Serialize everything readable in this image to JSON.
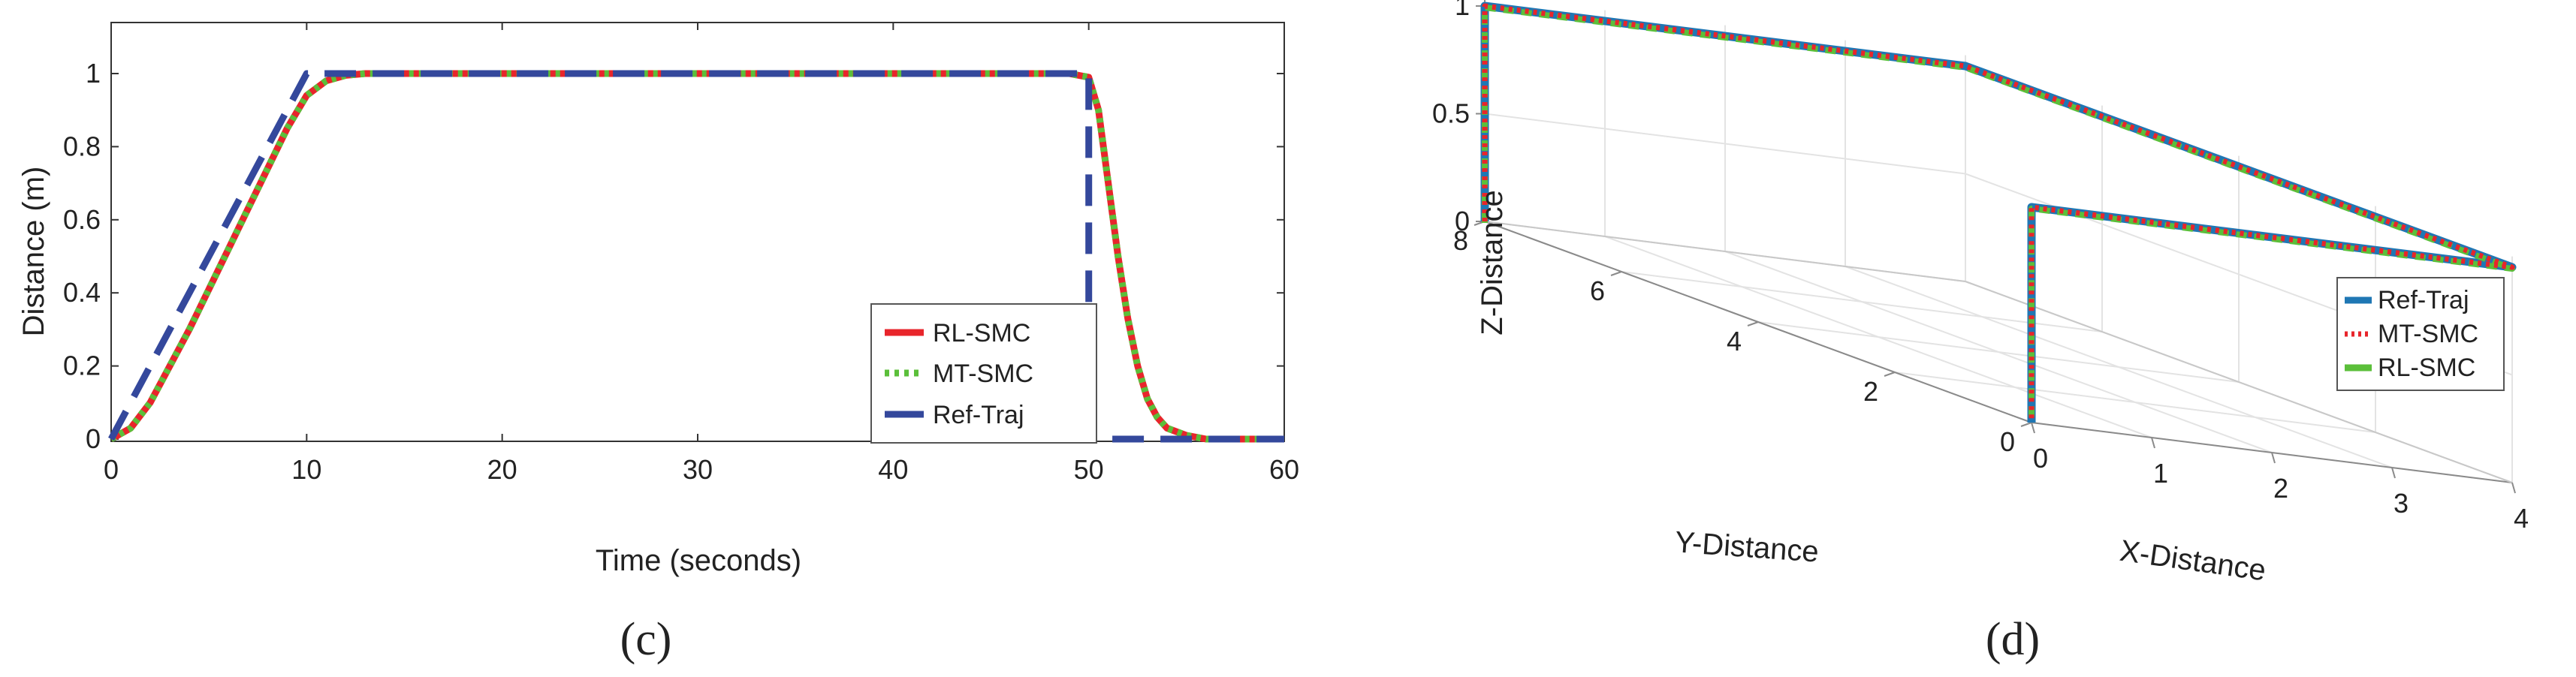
{
  "chart_data": [
    {
      "type": "line",
      "panel_label": "(c)",
      "xlabel": "Time (seconds)",
      "ylabel": "Distance (m)",
      "xlim": [
        0,
        60
      ],
      "ylim": [
        0,
        1
      ],
      "xticks": [
        "0",
        "10",
        "20",
        "30",
        "40",
        "50",
        "60"
      ],
      "yticks": [
        "0",
        "0.2",
        "0.4",
        "0.6",
        "0.8",
        "1"
      ],
      "grid": false,
      "legend_position": "lower-right",
      "colors": {
        "rl_smc": "#e8252b",
        "mt_smc": "#5bbf3a",
        "ref_traj": "#34489c"
      },
      "series": [
        {
          "name": "RL-SMC",
          "style": "solid",
          "x": [
            0,
            1,
            2,
            3,
            4,
            5,
            6,
            7,
            8,
            9,
            10,
            11,
            12,
            13,
            20,
            30,
            40,
            49,
            50,
            50.5,
            51,
            51.5,
            52,
            52.5,
            53,
            53.5,
            54,
            55,
            56,
            57,
            60
          ],
          "y": [
            0,
            0.03,
            0.1,
            0.2,
            0.3,
            0.41,
            0.52,
            0.63,
            0.74,
            0.85,
            0.94,
            0.98,
            0.995,
            1,
            1,
            1,
            1,
            1,
            0.99,
            0.9,
            0.7,
            0.5,
            0.33,
            0.2,
            0.11,
            0.06,
            0.03,
            0.01,
            0,
            0,
            0
          ]
        },
        {
          "name": "MT-SMC",
          "style": "dotted",
          "x": [
            0,
            1,
            2,
            3,
            4,
            5,
            6,
            7,
            8,
            9,
            10,
            11,
            12,
            13,
            20,
            30,
            40,
            49,
            50,
            50.5,
            51,
            51.5,
            52,
            52.5,
            53,
            53.5,
            54,
            55,
            56,
            57,
            60
          ],
          "y": [
            0,
            0.03,
            0.1,
            0.2,
            0.3,
            0.41,
            0.52,
            0.63,
            0.74,
            0.85,
            0.94,
            0.98,
            0.995,
            1,
            1,
            1,
            1,
            1,
            0.99,
            0.9,
            0.7,
            0.5,
            0.33,
            0.2,
            0.11,
            0.06,
            0.03,
            0.01,
            0,
            0,
            0
          ]
        },
        {
          "name": "Ref-Traj",
          "style": "dashed",
          "x": [
            0,
            10,
            50,
            50,
            60
          ],
          "y": [
            0,
            1,
            1,
            0,
            0
          ]
        }
      ]
    },
    {
      "type": "line3d",
      "panel_label": "(d)",
      "xlabel": "X-Distance",
      "ylabel": "Y-Distance",
      "zlabel": "Z-Distance",
      "xlim": [
        0,
        4
      ],
      "ylim": [
        0,
        8
      ],
      "zlim": [
        0,
        1
      ],
      "xticks": [
        "0",
        "1",
        "2",
        "3",
        "4"
      ],
      "yticks": [
        "0",
        "2",
        "4",
        "6",
        "8"
      ],
      "zticks": [
        "0",
        "0.5",
        "1"
      ],
      "grid": true,
      "legend_position": "right",
      "colors": {
        "ref_traj": "#1f77b4",
        "mt_smc": "#e8252b",
        "rl_smc": "#5bbf3a"
      },
      "series": [
        {
          "name": "Ref-Traj",
          "style": "solid",
          "points": [
            [
              0,
              8,
              0
            ],
            [
              0,
              8,
              1
            ],
            [
              4,
              8,
              1
            ],
            [
              4,
              0,
              1
            ],
            [
              0,
              0,
              1
            ],
            [
              0,
              0,
              0
            ]
          ]
        },
        {
          "name": "MT-SMC",
          "style": "dotted",
          "points": [
            [
              0,
              8,
              0
            ],
            [
              0,
              8,
              1
            ],
            [
              4,
              8,
              1
            ],
            [
              4,
              0,
              1
            ],
            [
              0,
              0,
              1
            ],
            [
              0,
              0,
              0
            ]
          ]
        },
        {
          "name": "RL-SMC",
          "style": "solid",
          "points": [
            [
              0,
              8,
              0
            ],
            [
              0,
              8,
              1
            ],
            [
              4,
              8,
              1
            ],
            [
              4,
              0,
              1
            ],
            [
              0,
              0,
              1
            ],
            [
              0,
              0,
              0
            ]
          ]
        }
      ]
    }
  ]
}
